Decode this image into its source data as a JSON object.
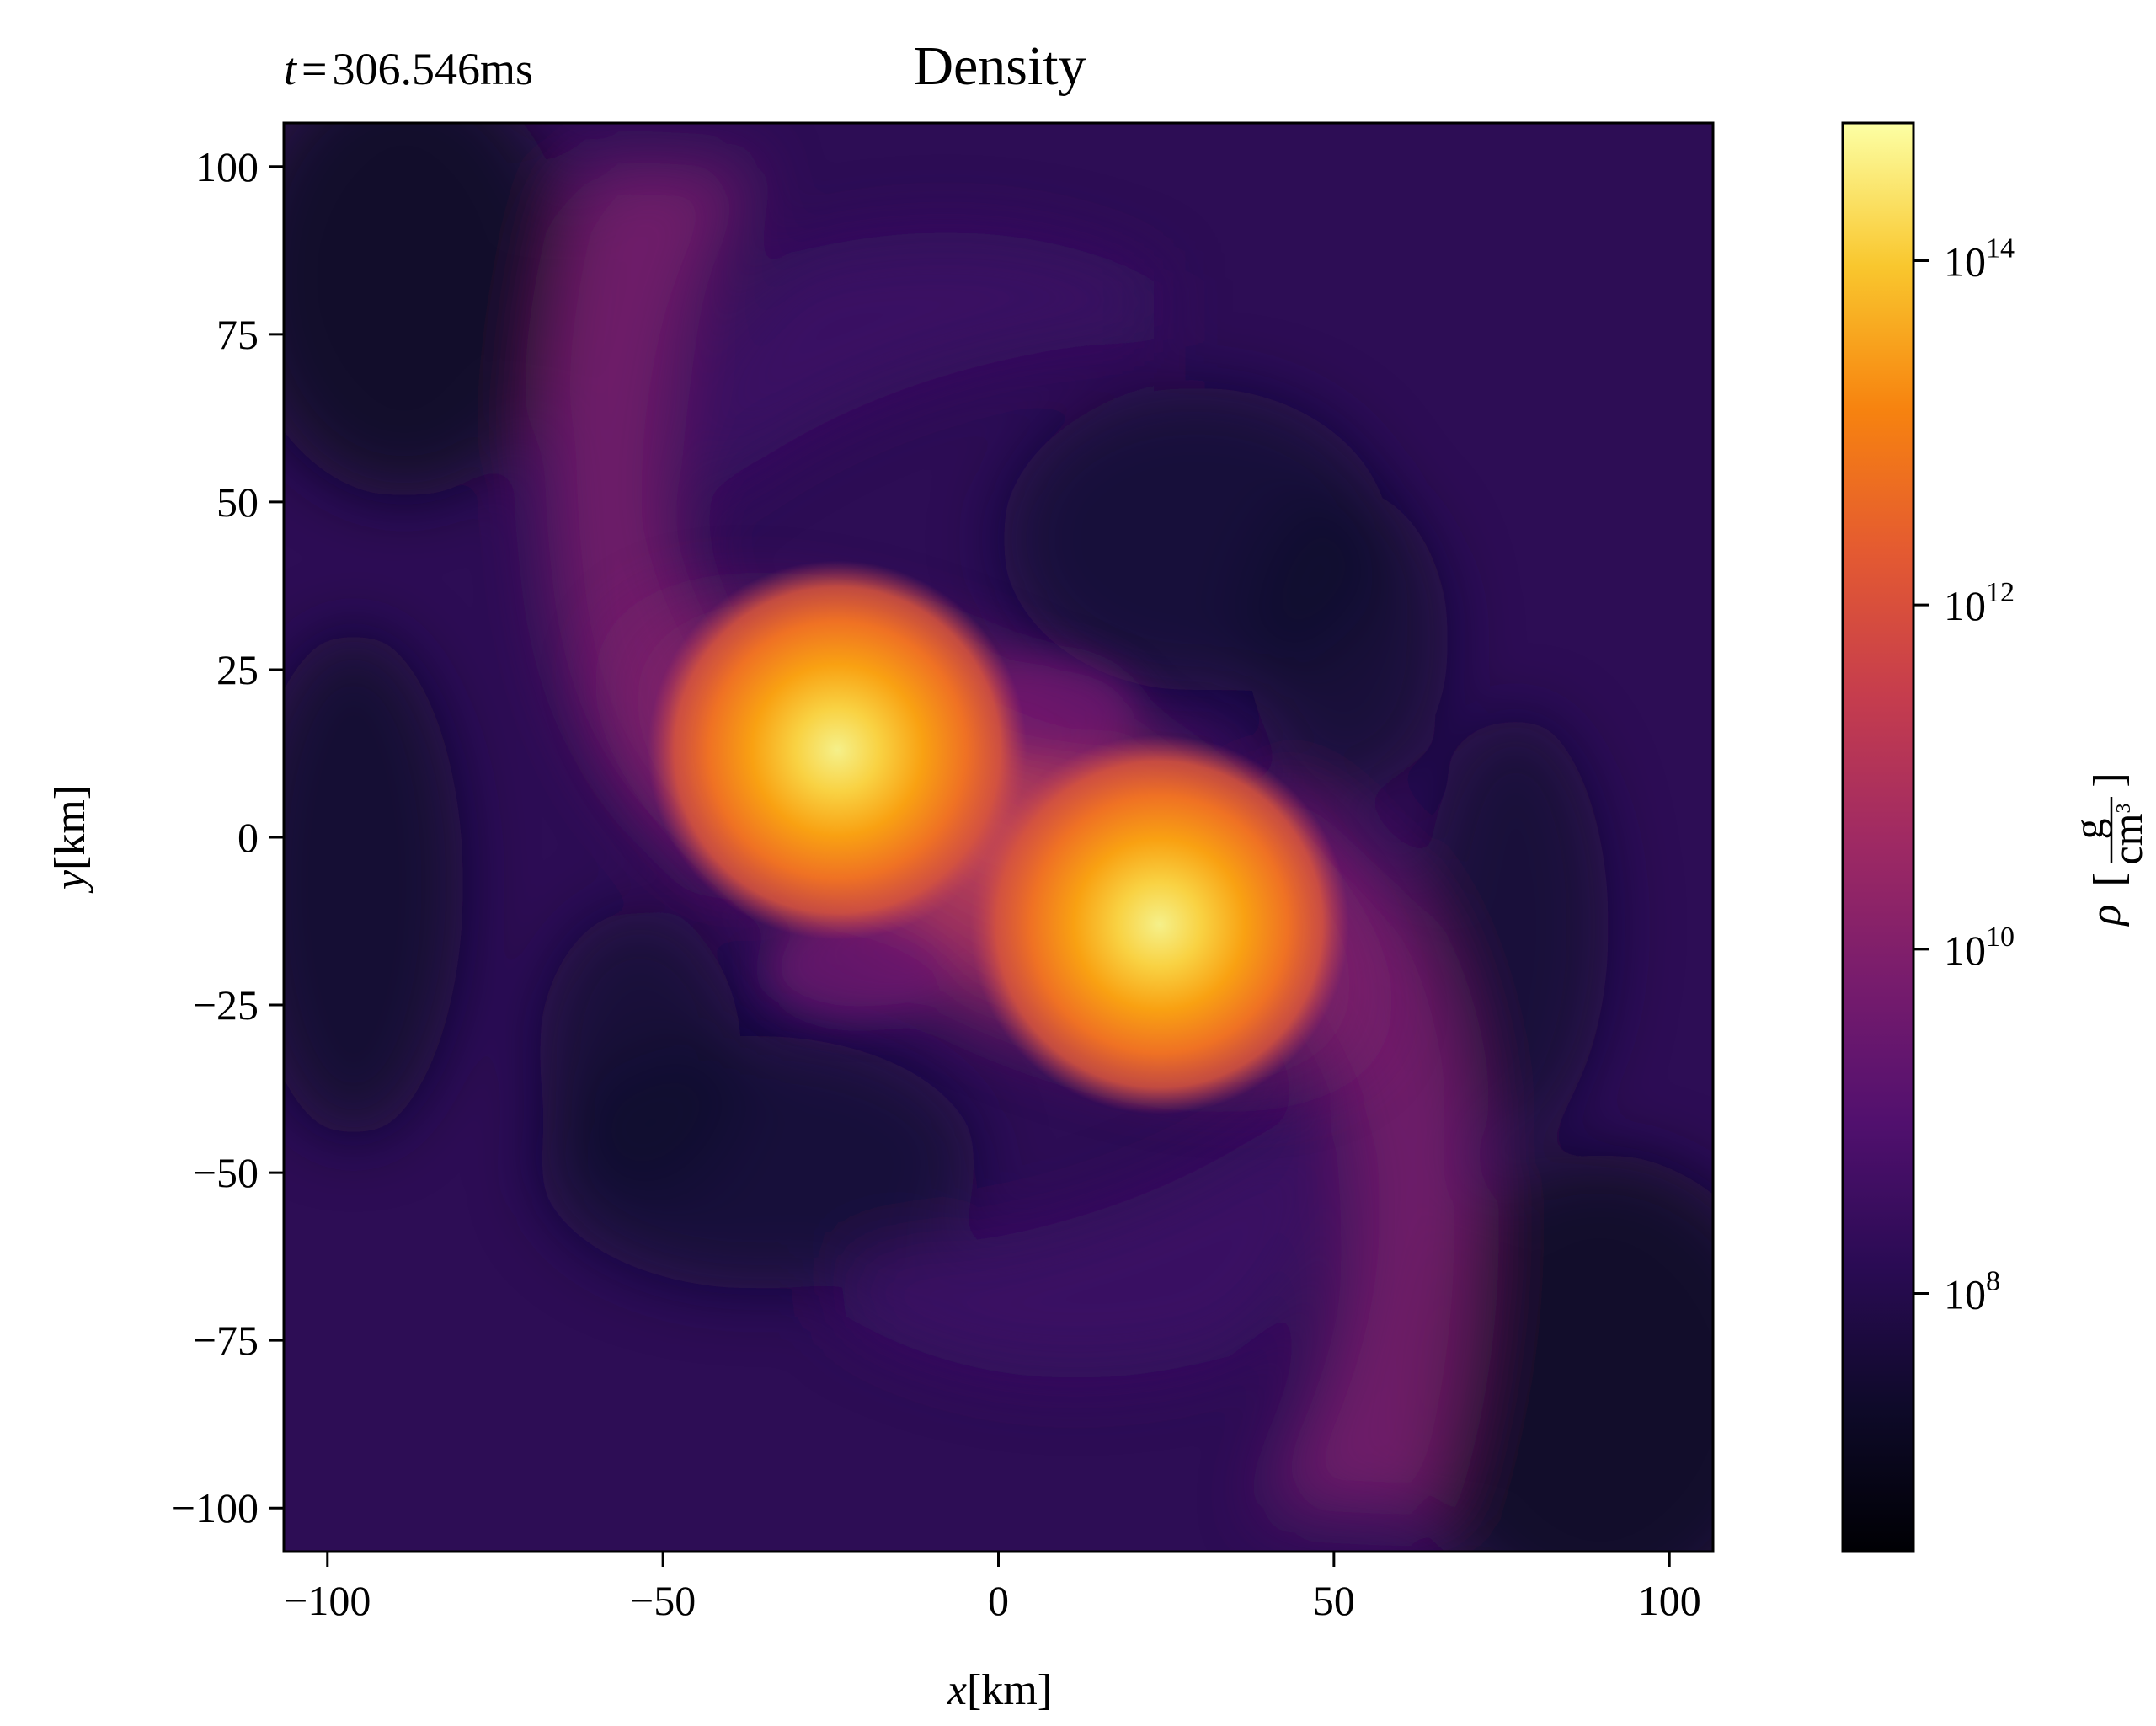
{
  "chart_data": {
    "type": "heatmap",
    "title": "Density",
    "annotation": {
      "symbol": "t",
      "equals": "=",
      "value": "306.546",
      "unit": "ms"
    },
    "xlabel": {
      "var": "x",
      "unit": "[km]"
    },
    "ylabel": {
      "var": "y",
      "unit": "[km]"
    },
    "xlim": [
      -106.5,
      106.5
    ],
    "ylim": [
      -106.5,
      106.5
    ],
    "x_ticks": [
      -100,
      -50,
      0,
      50,
      100
    ],
    "x_tick_labels": [
      "−100",
      "−50",
      "0",
      "50",
      "100"
    ],
    "y_ticks": [
      100,
      75,
      50,
      25,
      0,
      -25,
      -50,
      -75,
      -100
    ],
    "y_tick_labels": [
      "100",
      "75",
      "50",
      "25",
      "0",
      "−25",
      "−50",
      "−75",
      "−100"
    ],
    "colormap": "inferno",
    "colorbar": {
      "label_symbol": "ρ",
      "label_num": "g",
      "label_den": "cm",
      "label_den_exp": "3",
      "scale": "log",
      "range_log10": [
        6.5,
        14.8
      ],
      "ticks_log10": [
        8,
        10,
        12,
        14
      ],
      "tick_base": "10",
      "tick_exponents": [
        "8",
        "10",
        "12",
        "14"
      ]
    },
    "sources": [
      {
        "x": -24,
        "y": 13
      },
      {
        "x": 24,
        "y": -13
      }
    ],
    "grid": false,
    "legend": "none"
  }
}
